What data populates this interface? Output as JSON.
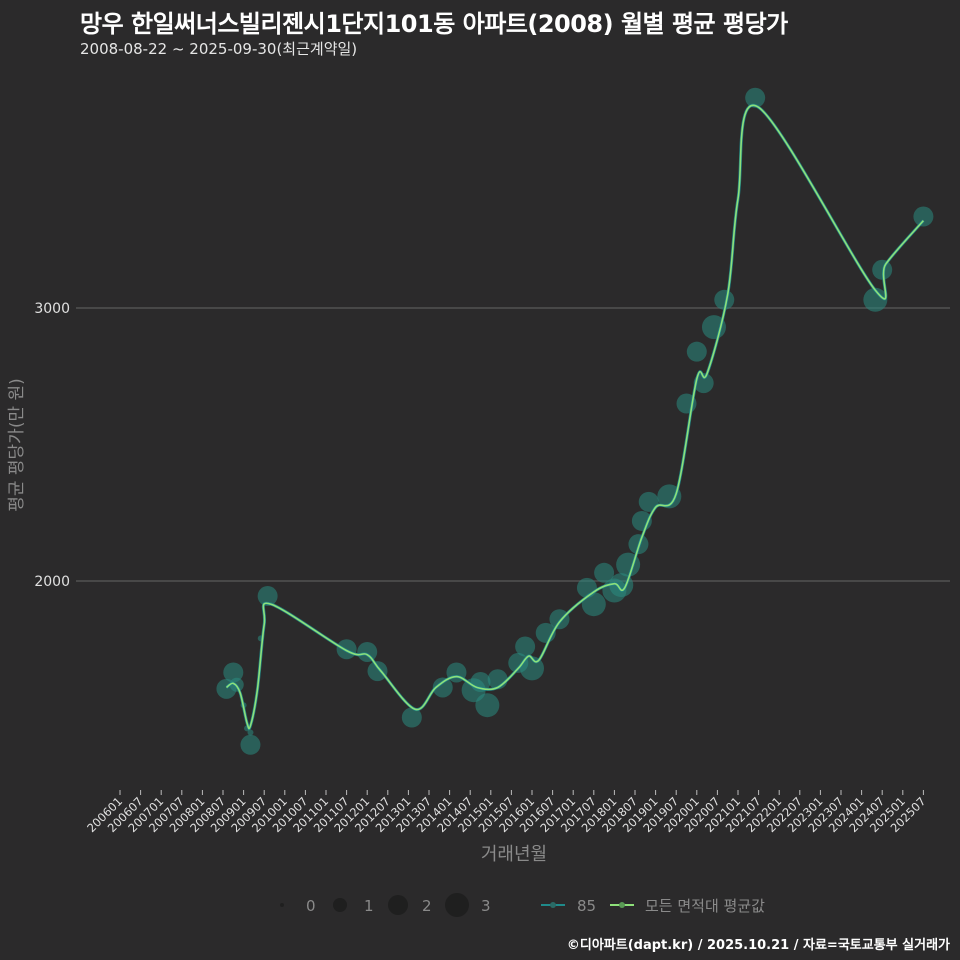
{
  "header": {
    "title": "망우 한일써너스빌리젠시1단지101동 아파트(2008) 월별 평균 평당가",
    "subtitle": "2008-08-22 ~ 2025-09-30(최근계약일)"
  },
  "footer": {
    "caption": "©디아파트(dapt.kr) / 2025.10.21 / 자료=국토교통부 실거래가"
  },
  "colors": {
    "background": "#2b2a2b",
    "gridline": "#5a5a5a",
    "point_fill": "#2a8a80",
    "series_85": "#1f8a8a",
    "series_all_avg": "#8ee07a"
  },
  "chart_data": {
    "type": "line",
    "title": "망우 한일써너스빌리젠시1단지101동 아파트(2008) 월별 평균 평당가",
    "subtitle": "2008-08-22 ~ 2025-09-30(최근계약일)",
    "xlabel": "거래년월",
    "ylabel": "평균 평당가(만 원)",
    "y_ticks": [
      2000,
      3000
    ],
    "ylim": [
      1200,
      3900
    ],
    "grid": "horizontal major lines only",
    "x_tick_labels": [
      "200601",
      "200607",
      "200701",
      "200707",
      "200801",
      "200807",
      "200901",
      "200907",
      "201001",
      "201007",
      "201101",
      "201107",
      "201201",
      "201207",
      "201301",
      "201307",
      "201401",
      "201407",
      "201501",
      "201507",
      "201601",
      "201607",
      "201701",
      "201707",
      "201801",
      "201807",
      "201901",
      "201907",
      "202001",
      "202007",
      "202101",
      "202107",
      "202201",
      "202207",
      "202301",
      "202307",
      "202401",
      "202407",
      "202501",
      "202507"
    ],
    "legend": {
      "position": "bottom",
      "size_title": "",
      "size_entries": [
        "0",
        "1",
        "2",
        "3"
      ],
      "line_entries": [
        "85",
        "모든 면적대 평균값"
      ]
    },
    "series": [
      {
        "name": "85",
        "kind": "scatter (size = transaction count)",
        "points": [
          {
            "x": "2008-08",
            "y": 1605,
            "size": 2
          },
          {
            "x": "2008-10",
            "y": 1665,
            "size": 2
          },
          {
            "x": "2008-11",
            "y": 1620,
            "size": 1
          },
          {
            "x": "2009-01",
            "y": 1545,
            "size": 0
          },
          {
            "x": "2009-02",
            "y": 1460,
            "size": 0
          },
          {
            "x": "2009-03",
            "y": 1445,
            "size": 0
          },
          {
            "x": "2009-03",
            "y": 1400,
            "size": 2
          },
          {
            "x": "2009-06",
            "y": 1790,
            "size": 0
          },
          {
            "x": "2009-08",
            "y": 1945,
            "size": 2
          },
          {
            "x": "2011-07",
            "y": 1750,
            "size": 2
          },
          {
            "x": "2012-01",
            "y": 1740,
            "size": 2
          },
          {
            "x": "2012-04",
            "y": 1670,
            "size": 2
          },
          {
            "x": "2013-02",
            "y": 1500,
            "size": 2
          },
          {
            "x": "2013-11",
            "y": 1610,
            "size": 2
          },
          {
            "x": "2014-03",
            "y": 1665,
            "size": 2
          },
          {
            "x": "2014-08",
            "y": 1600,
            "size": 3
          },
          {
            "x": "2014-10",
            "y": 1630,
            "size": 2
          },
          {
            "x": "2014-12",
            "y": 1545,
            "size": 3
          },
          {
            "x": "2015-03",
            "y": 1640,
            "size": 2
          },
          {
            "x": "2015-09",
            "y": 1700,
            "size": 2
          },
          {
            "x": "2015-11",
            "y": 1760,
            "size": 2
          },
          {
            "x": "2016-01",
            "y": 1680,
            "size": 3
          },
          {
            "x": "2016-05",
            "y": 1810,
            "size": 2
          },
          {
            "x": "2016-09",
            "y": 1860,
            "size": 2
          },
          {
            "x": "2017-05",
            "y": 1975,
            "size": 2
          },
          {
            "x": "2017-07",
            "y": 1915,
            "size": 3
          },
          {
            "x": "2017-10",
            "y": 2030,
            "size": 2
          },
          {
            "x": "2018-01",
            "y": 1965,
            "size": 3
          },
          {
            "x": "2018-03",
            "y": 1985,
            "size": 3
          },
          {
            "x": "2018-05",
            "y": 2060,
            "size": 3
          },
          {
            "x": "2018-08",
            "y": 2135,
            "size": 2
          },
          {
            "x": "2018-09",
            "y": 2220,
            "size": 2
          },
          {
            "x": "2018-11",
            "y": 2290,
            "size": 2
          },
          {
            "x": "2019-05",
            "y": 2310,
            "size": 3
          },
          {
            "x": "2019-10",
            "y": 2650,
            "size": 2
          },
          {
            "x": "2020-01",
            "y": 2840,
            "size": 2
          },
          {
            "x": "2020-03",
            "y": 2725,
            "size": 2
          },
          {
            "x": "2020-06",
            "y": 2930,
            "size": 3
          },
          {
            "x": "2020-09",
            "y": 3030,
            "size": 2
          },
          {
            "x": "2021-06",
            "y": 3770,
            "size": 2
          },
          {
            "x": "2024-05",
            "y": 3030,
            "size": 3
          },
          {
            "x": "2024-07",
            "y": 3140,
            "size": 2
          },
          {
            "x": "2025-07",
            "y": 3335,
            "size": 2
          }
        ]
      },
      {
        "name": "모든 면적대 평균값",
        "kind": "smoothed line",
        "points": [
          {
            "x": "2008-08",
            "y": 1610
          },
          {
            "x": "2008-10",
            "y": 1625
          },
          {
            "x": "2008-12",
            "y": 1590
          },
          {
            "x": "2009-02",
            "y": 1480
          },
          {
            "x": "2009-03",
            "y": 1470
          },
          {
            "x": "2009-05",
            "y": 1600
          },
          {
            "x": "2009-07",
            "y": 1840
          },
          {
            "x": "2009-09",
            "y": 1915
          },
          {
            "x": "2011-07",
            "y": 1745
          },
          {
            "x": "2012-01",
            "y": 1730
          },
          {
            "x": "2012-05",
            "y": 1670
          },
          {
            "x": "2013-03",
            "y": 1530
          },
          {
            "x": "2013-09",
            "y": 1610
          },
          {
            "x": "2014-03",
            "y": 1650
          },
          {
            "x": "2014-09",
            "y": 1610
          },
          {
            "x": "2015-03",
            "y": 1610
          },
          {
            "x": "2015-09",
            "y": 1680
          },
          {
            "x": "2015-12",
            "y": 1725
          },
          {
            "x": "2016-03",
            "y": 1710
          },
          {
            "x": "2016-09",
            "y": 1850
          },
          {
            "x": "2017-07",
            "y": 1960
          },
          {
            "x": "2018-01",
            "y": 1990
          },
          {
            "x": "2018-04",
            "y": 1975
          },
          {
            "x": "2018-09",
            "y": 2160
          },
          {
            "x": "2019-01",
            "y": 2270
          },
          {
            "x": "2019-07",
            "y": 2320
          },
          {
            "x": "2020-01",
            "y": 2740
          },
          {
            "x": "2020-04",
            "y": 2760
          },
          {
            "x": "2020-10",
            "y": 3050
          },
          {
            "x": "2021-01",
            "y": 3400
          },
          {
            "x": "2021-07",
            "y": 3735
          },
          {
            "x": "2024-05",
            "y": 3065
          },
          {
            "x": "2024-08",
            "y": 3160
          },
          {
            "x": "2025-07",
            "y": 3320
          }
        ]
      }
    ]
  },
  "legend": {
    "size_labels": [
      "0",
      "1",
      "2",
      "3"
    ],
    "line_labels": [
      "85",
      "모든 면적대 평균값"
    ]
  },
  "axes": {
    "xlabel": "거래년월",
    "ylabel": "평균 평당가(만 원)",
    "y_tick_labels": [
      "3000",
      "2000"
    ]
  }
}
